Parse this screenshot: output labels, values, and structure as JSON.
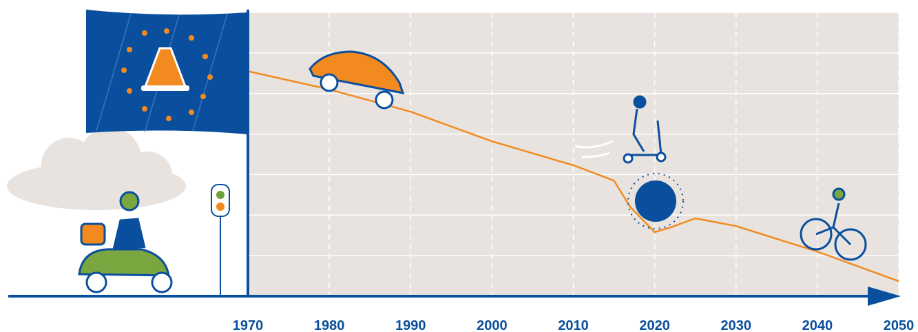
{
  "chart_data": {
    "type": "line",
    "x": [
      1970,
      1980,
      1990,
      2000,
      2010,
      2015,
      2017,
      2020,
      2022,
      2025,
      2030,
      2040,
      2050
    ],
    "values": [
      5.55,
      5.1,
      4.55,
      3.82,
      3.23,
      2.85,
      2.2,
      1.58,
      1.7,
      1.92,
      1.73,
      1.1,
      0.37
    ],
    "color": "#f28a1f",
    "xlim": [
      1970,
      2050
    ],
    "xticks": [
      1970,
      1980,
      1990,
      2000,
      2010,
      2020,
      2030,
      2040,
      2050
    ],
    "ylim": [
      0,
      7
    ],
    "yticks": [
      1,
      2,
      3,
      4,
      5,
      6,
      7
    ],
    "grid": true
  }
}
